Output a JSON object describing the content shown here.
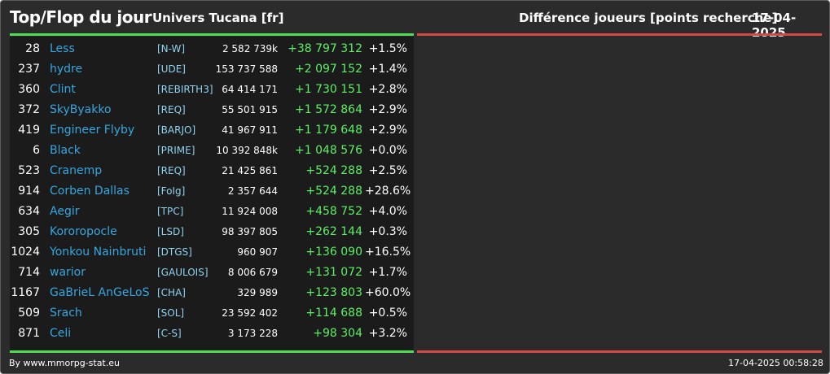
{
  "header": {
    "title": "Top/Flop du jour",
    "universe": "Univers Tucana [fr]",
    "metric": "Différence joueurs [points recherche]",
    "date": "17-04-2025"
  },
  "colors": {
    "background": "#2b2b2b",
    "panel": "#1b1b1b",
    "top_rule": "#4ddd55",
    "flop_rule": "#d24a45",
    "name": "#35a7e0",
    "alliance": "#8fd3f0",
    "gain": "#5cf064"
  },
  "top": [
    {
      "rank": "28",
      "name": "Less",
      "alliance": "[N-W]",
      "points": "2 582 739k",
      "diff": "+38 797 312",
      "pct": "+1.5%"
    },
    {
      "rank": "237",
      "name": "hydre",
      "alliance": "[UDE]",
      "points": "153 737 588",
      "diff": "+2 097 152",
      "pct": "+1.4%"
    },
    {
      "rank": "360",
      "name": "Clint",
      "alliance": "[REBIRTH3]",
      "points": "64 414 171",
      "diff": "+1 730 151",
      "pct": "+2.8%"
    },
    {
      "rank": "372",
      "name": "SkyByakko",
      "alliance": "[REQ]",
      "points": "55 501 915",
      "diff": "+1 572 864",
      "pct": "+2.9%"
    },
    {
      "rank": "419",
      "name": "Engineer Flyby",
      "alliance": "[BARJO]",
      "points": "41 967 911",
      "diff": "+1 179 648",
      "pct": "+2.9%"
    },
    {
      "rank": "6",
      "name": "Black",
      "alliance": "[PRIME]",
      "points": "10 392 848k",
      "diff": "+1 048 576",
      "pct": "+0.0%"
    },
    {
      "rank": "523",
      "name": "Cranemp",
      "alliance": "[REQ]",
      "points": "21 425 861",
      "diff": "+524 288",
      "pct": "+2.5%"
    },
    {
      "rank": "914",
      "name": "Corben Dallas",
      "alliance": "[FoIg]",
      "points": "2 357 644",
      "diff": "+524 288",
      "pct": "+28.6%"
    },
    {
      "rank": "634",
      "name": "Aegir",
      "alliance": "[TPC]",
      "points": "11 924 008",
      "diff": "+458 752",
      "pct": "+4.0%"
    },
    {
      "rank": "305",
      "name": "Kororopocle",
      "alliance": "[LSD]",
      "points": "98 397 805",
      "diff": "+262 144",
      "pct": "+0.3%"
    },
    {
      "rank": "1024",
      "name": "Yonkou Nainbruti",
      "alliance": "[DTGS]",
      "points": "960 907",
      "diff": "+136 090",
      "pct": "+16.5%"
    },
    {
      "rank": "714",
      "name": "warior",
      "alliance": "[GAULOIS]",
      "points": "8 006 679",
      "diff": "+131 072",
      "pct": "+1.7%"
    },
    {
      "rank": "1167",
      "name": "GaBrieL AnGeLoS",
      "alliance": "[CHA]",
      "points": "329 989",
      "diff": "+123 803",
      "pct": "+60.0%"
    },
    {
      "rank": "509",
      "name": "Srach",
      "alliance": "[SOL]",
      "points": "23 592 402",
      "diff": "+114 688",
      "pct": "+0.5%"
    },
    {
      "rank": "871",
      "name": "Celi",
      "alliance": "[C-S]",
      "points": "3 173 228",
      "diff": "+98 304",
      "pct": "+3.2%"
    }
  ],
  "footer": {
    "credit": "By www.mmorpg-stat.eu",
    "timestamp": "17-04-2025 00:58:28"
  }
}
